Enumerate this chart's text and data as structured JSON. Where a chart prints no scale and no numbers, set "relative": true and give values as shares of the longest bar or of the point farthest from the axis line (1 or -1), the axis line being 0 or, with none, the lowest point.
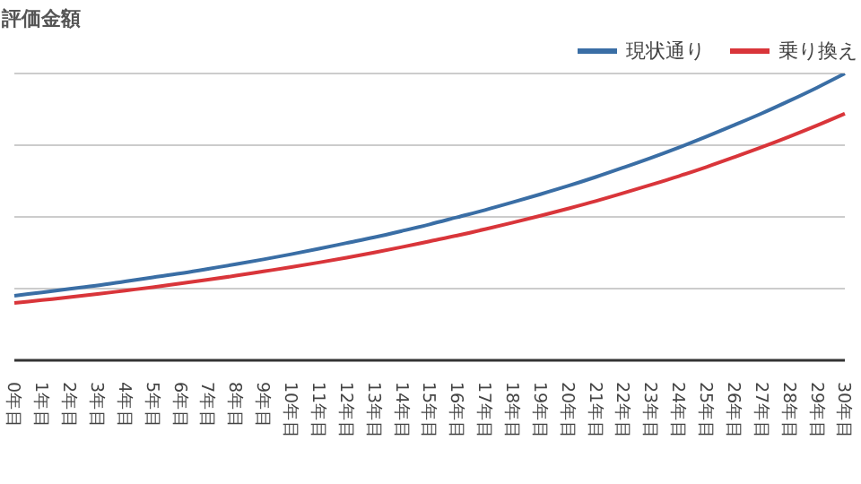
{
  "chart_data": {
    "type": "line",
    "ylabel": "評価金額",
    "relative": true,
    "grid": "y",
    "legend": "top right",
    "marker": "none",
    "line_style": "solid",
    "categories": [
      "0年目",
      "1年目",
      "2年目",
      "3年目",
      "4年目",
      "5年目",
      "6年目",
      "7年目",
      "8年目",
      "9年目",
      "10年目",
      "11年目",
      "12年目",
      "13年目",
      "14年目",
      "15年目",
      "16年目",
      "17年目",
      "18年目",
      "19年目",
      "20年目",
      "21年目",
      "22年目",
      "23年目",
      "24年目",
      "25年目",
      "26年目",
      "27年目",
      "28年目",
      "29年目",
      "30年目"
    ],
    "series": [
      {
        "name": "現状通り",
        "color": "#3a6ea5",
        "values": [
          0.225,
          0.237,
          0.249,
          0.261,
          0.275,
          0.289,
          0.303,
          0.319,
          0.335,
          0.352,
          0.37,
          0.389,
          0.409,
          0.429,
          0.451,
          0.474,
          0.499,
          0.524,
          0.551,
          0.579,
          0.608,
          0.639,
          0.672,
          0.706,
          0.742,
          0.78,
          0.82,
          0.861,
          0.905,
          0.951,
          1
        ]
      },
      {
        "name": "乗り換え",
        "color": "#d9353a",
        "values": [
          0.2,
          0.21,
          0.22,
          0.231,
          0.243,
          0.255,
          0.268,
          0.281,
          0.295,
          0.31,
          0.325,
          0.341,
          0.358,
          0.376,
          0.395,
          0.415,
          0.435,
          0.457,
          0.48,
          0.504,
          0.529,
          0.555,
          0.583,
          0.612,
          0.642,
          0.674,
          0.708,
          0.743,
          0.78,
          0.819,
          0.86
        ]
      }
    ]
  }
}
